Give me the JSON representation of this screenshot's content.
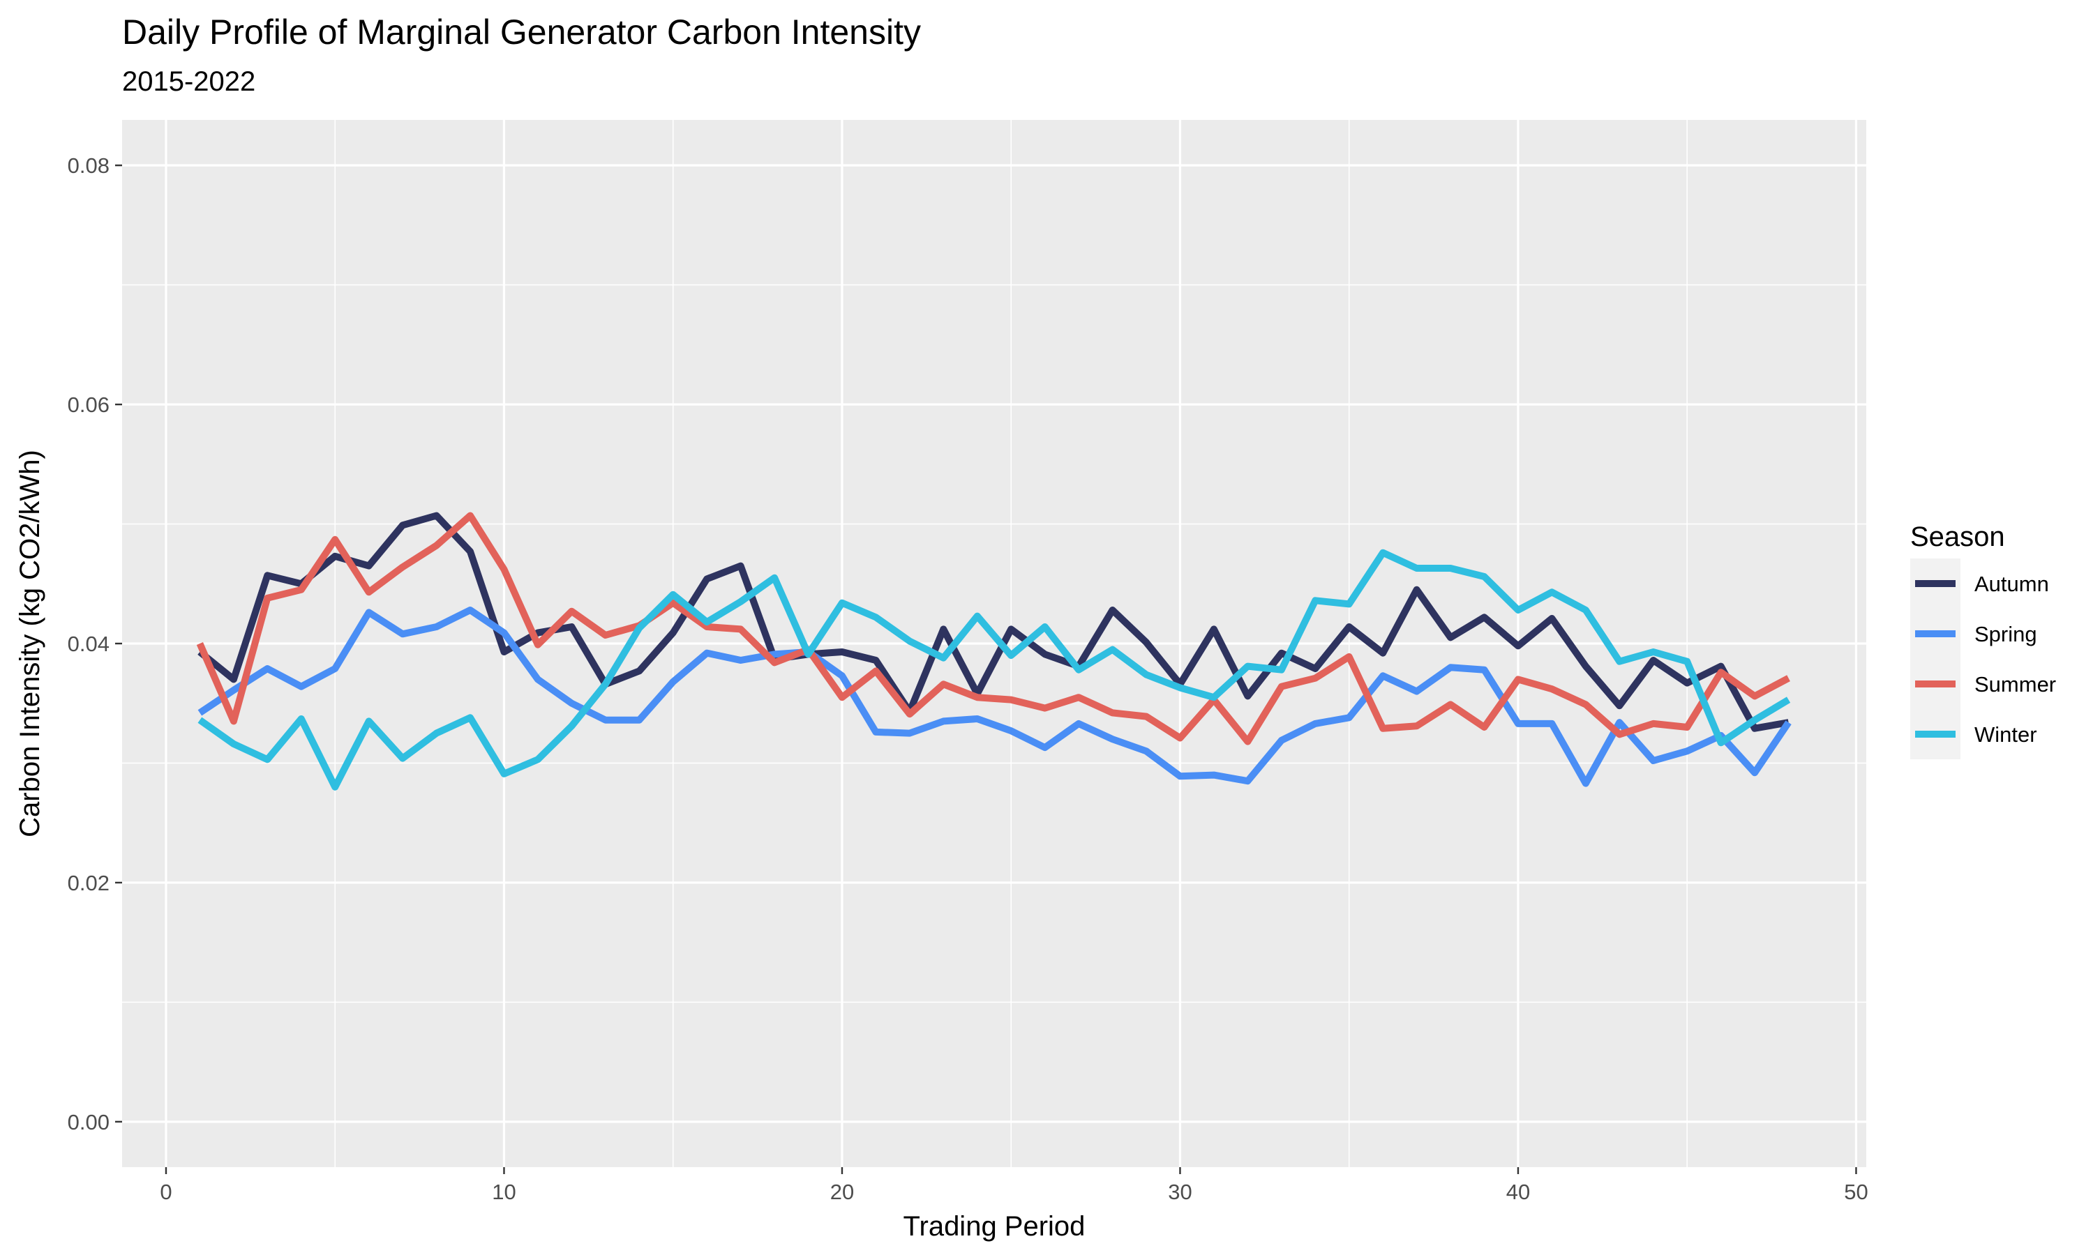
{
  "chart_data": {
    "type": "line",
    "title": "Daily Profile of Marginal Generator Carbon Intensity",
    "subtitle": "2015-2022",
    "xlabel": "Trading Period",
    "ylabel": "Carbon Intensity (kg CO2/kWh)",
    "xlim": [
      -1.3,
      50.3
    ],
    "ylim": [
      -0.0038,
      0.0838
    ],
    "x_ticks": [
      0,
      10,
      20,
      30,
      40,
      50
    ],
    "x_tick_labels": [
      "0",
      "10",
      "20",
      "30",
      "40",
      "50"
    ],
    "y_ticks": [
      0,
      0.02,
      0.04,
      0.06,
      0.08
    ],
    "y_tick_labels": [
      "0.00",
      "0.02",
      "0.04",
      "0.06",
      "0.08"
    ],
    "grid": true,
    "legend_title": "Season",
    "legend_position": "right",
    "x": [
      1,
      2,
      3,
      4,
      5,
      6,
      7,
      8,
      9,
      10,
      11,
      12,
      13,
      14,
      15,
      16,
      17,
      18,
      19,
      20,
      21,
      22,
      23,
      24,
      25,
      26,
      27,
      28,
      29,
      30,
      31,
      32,
      33,
      34,
      35,
      36,
      37,
      38,
      39,
      40,
      41,
      42,
      43,
      44,
      45,
      46,
      47,
      48
    ],
    "series": [
      {
        "name": "Autumn",
        "color": "#2e335f",
        "values": [
          0.0393,
          0.037,
          0.0457,
          0.045,
          0.0473,
          0.0465,
          0.0499,
          0.0507,
          0.0477,
          0.0393,
          0.0409,
          0.0414,
          0.0366,
          0.0377,
          0.0409,
          0.0454,
          0.0465,
          0.0387,
          0.0391,
          0.0393,
          0.0386,
          0.0343,
          0.0412,
          0.0358,
          0.0412,
          0.0391,
          0.0381,
          0.0428,
          0.0401,
          0.0366,
          0.0412,
          0.0356,
          0.0392,
          0.0379,
          0.0414,
          0.0392,
          0.0445,
          0.0405,
          0.0422,
          0.0398,
          0.0421,
          0.0381,
          0.0348,
          0.0386,
          0.0367,
          0.0381,
          0.0329,
          0.0334
        ]
      },
      {
        "name": "Spring",
        "color": "#4a8ef5",
        "values": [
          0.0342,
          0.0361,
          0.0379,
          0.0364,
          0.0379,
          0.0426,
          0.0408,
          0.0414,
          0.0428,
          0.0409,
          0.037,
          0.035,
          0.0336,
          0.0336,
          0.0368,
          0.0392,
          0.0386,
          0.0391,
          0.0393,
          0.0373,
          0.0326,
          0.0325,
          0.0335,
          0.0337,
          0.0327,
          0.0313,
          0.0333,
          0.032,
          0.031,
          0.0289,
          0.029,
          0.0285,
          0.0319,
          0.0333,
          0.0338,
          0.0373,
          0.036,
          0.038,
          0.0378,
          0.0333,
          0.0333,
          0.0283,
          0.0334,
          0.0302,
          0.031,
          0.0323,
          0.0292,
          0.0334
        ]
      },
      {
        "name": "Summer",
        "color": "#e2625a",
        "values": [
          0.04,
          0.0335,
          0.0438,
          0.0445,
          0.0487,
          0.0443,
          0.0464,
          0.0482,
          0.0507,
          0.0462,
          0.0399,
          0.0427,
          0.0407,
          0.0415,
          0.0434,
          0.0414,
          0.0412,
          0.0384,
          0.0395,
          0.0355,
          0.0377,
          0.0341,
          0.0366,
          0.0355,
          0.0353,
          0.0346,
          0.0355,
          0.0342,
          0.0339,
          0.0321,
          0.0353,
          0.0318,
          0.0364,
          0.0371,
          0.0389,
          0.0329,
          0.0331,
          0.0349,
          0.033,
          0.037,
          0.0362,
          0.0349,
          0.0324,
          0.0333,
          0.033,
          0.0376,
          0.0356,
          0.0371
        ]
      },
      {
        "name": "Winter",
        "color": "#2fbee0",
        "values": [
          0.0336,
          0.0316,
          0.0303,
          0.0337,
          0.028,
          0.0335,
          0.0304,
          0.0325,
          0.0338,
          0.0291,
          0.0303,
          0.0331,
          0.0366,
          0.0413,
          0.0441,
          0.0418,
          0.0435,
          0.0455,
          0.0391,
          0.0434,
          0.0422,
          0.0402,
          0.0388,
          0.0423,
          0.039,
          0.0414,
          0.0378,
          0.0395,
          0.0374,
          0.0363,
          0.0355,
          0.0381,
          0.0378,
          0.0436,
          0.0433,
          0.0476,
          0.0463,
          0.0463,
          0.0456,
          0.0428,
          0.0443,
          0.0428,
          0.0385,
          0.0393,
          0.0385,
          0.0317,
          0.0336,
          0.0353
        ]
      }
    ]
  }
}
